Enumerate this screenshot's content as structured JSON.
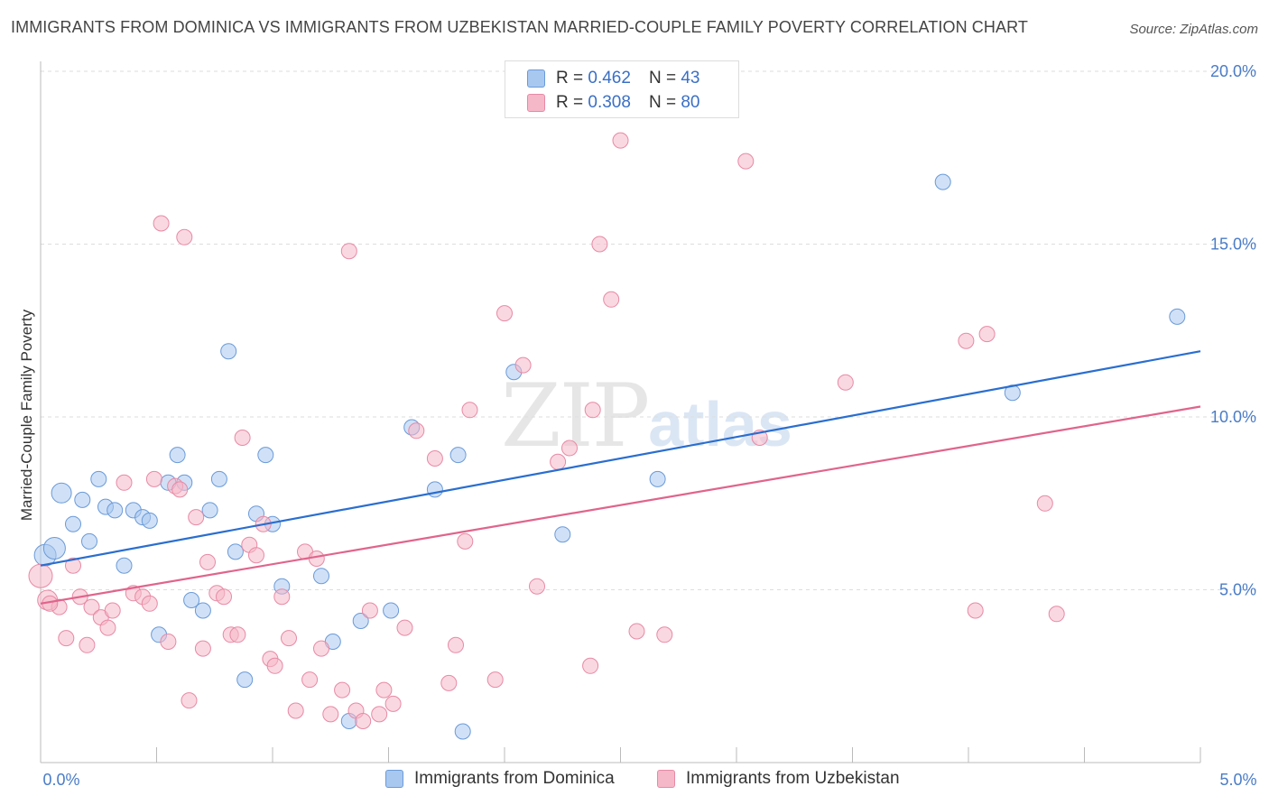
{
  "header": {
    "title": "IMMIGRANTS FROM DOMINICA VS IMMIGRANTS FROM UZBEKISTAN MARRIED-COUPLE FAMILY POVERTY CORRELATION CHART",
    "source": "Source: ZipAtlas.com"
  },
  "watermark": {
    "zip": "ZIP",
    "atlas": "atlas"
  },
  "legend": {
    "rows": [
      {
        "r_label": "R =",
        "r_value": "0.462",
        "n_label": "N =",
        "n_value": "43",
        "color": "#a9c8f0"
      },
      {
        "r_label": "R =",
        "r_value": "0.308",
        "n_label": "N =",
        "n_value": "80",
        "color": "#f5b8c9"
      }
    ]
  },
  "bottom_legend": {
    "dominica": "Immigrants from Dominica",
    "uzbekistan": "Immigrants from Uzbekistan"
  },
  "colors": {
    "dominica_fill": "#a9c8f0",
    "dominica_stroke": "#6a9ad8",
    "dominica_line": "#2a6ecf",
    "uzbekistan_fill": "#f5b8c9",
    "uzbekistan_stroke": "#e78aa5",
    "uzbekistan_line": "#e0648c",
    "grid": "#dddddd",
    "tick_label": "#4a7cc7"
  },
  "chart_data": {
    "type": "scatter",
    "title": "IMMIGRANTS FROM DOMINICA VS IMMIGRANTS FROM UZBEKISTAN MARRIED-COUPLE FAMILY POVERTY CORRELATION CHART",
    "xlabel": "",
    "ylabel": "Married-Couple Family Poverty",
    "xlim": [
      0,
      5
    ],
    "ylim": [
      0,
      20
    ],
    "x_tick_labels": [
      "0.0%",
      "5.0%"
    ],
    "y_ticks": [
      5,
      10,
      15,
      20
    ],
    "y_tick_labels": [
      "5.0%",
      "10.0%",
      "15.0%",
      "20.0%"
    ],
    "grid": true,
    "series": [
      {
        "name": "Immigrants from Dominica",
        "R": 0.462,
        "N": 43,
        "trend": {
          "x0": 0,
          "y0": 5.7,
          "x1": 5,
          "y1": 11.9
        },
        "points": [
          [
            0.02,
            6.0
          ],
          [
            0.06,
            6.2
          ],
          [
            0.09,
            7.8
          ],
          [
            0.14,
            6.9
          ],
          [
            0.18,
            7.6
          ],
          [
            0.21,
            6.4
          ],
          [
            0.25,
            8.2
          ],
          [
            0.28,
            7.4
          ],
          [
            0.32,
            7.3
          ],
          [
            0.36,
            5.7
          ],
          [
            0.4,
            7.3
          ],
          [
            0.44,
            7.1
          ],
          [
            0.47,
            7.0
          ],
          [
            0.51,
            3.7
          ],
          [
            0.55,
            8.1
          ],
          [
            0.59,
            8.9
          ],
          [
            0.62,
            8.1
          ],
          [
            0.65,
            4.7
          ],
          [
            0.7,
            4.4
          ],
          [
            0.73,
            7.3
          ],
          [
            0.77,
            8.2
          ],
          [
            0.81,
            11.9
          ],
          [
            0.84,
            6.1
          ],
          [
            0.88,
            2.4
          ],
          [
            0.93,
            7.2
          ],
          [
            0.97,
            8.9
          ],
          [
            1.0,
            6.9
          ],
          [
            1.04,
            5.1
          ],
          [
            1.21,
            5.4
          ],
          [
            1.26,
            3.5
          ],
          [
            1.33,
            1.2
          ],
          [
            1.38,
            4.1
          ],
          [
            1.51,
            4.4
          ],
          [
            1.6,
            9.7
          ],
          [
            1.7,
            7.9
          ],
          [
            1.8,
            8.9
          ],
          [
            1.82,
            0.9
          ],
          [
            2.04,
            11.3
          ],
          [
            2.25,
            6.6
          ],
          [
            2.66,
            8.2
          ],
          [
            3.89,
            16.8
          ],
          [
            4.19,
            10.7
          ],
          [
            4.9,
            12.9
          ]
        ]
      },
      {
        "name": "Immigrants from Uzbekistan",
        "R": 0.308,
        "N": 80,
        "trend": {
          "x0": 0,
          "y0": 4.6,
          "x1": 5,
          "y1": 10.3
        },
        "points": [
          [
            0.0,
            5.4
          ],
          [
            0.03,
            4.7
          ],
          [
            0.08,
            4.5
          ],
          [
            0.11,
            3.6
          ],
          [
            0.14,
            5.7
          ],
          [
            0.17,
            4.8
          ],
          [
            0.2,
            3.4
          ],
          [
            0.22,
            4.5
          ],
          [
            0.26,
            4.2
          ],
          [
            0.29,
            3.9
          ],
          [
            0.31,
            4.4
          ],
          [
            0.36,
            8.1
          ],
          [
            0.4,
            4.9
          ],
          [
            0.44,
            4.8
          ],
          [
            0.47,
            4.6
          ],
          [
            0.49,
            8.2
          ],
          [
            0.52,
            15.6
          ],
          [
            0.55,
            3.5
          ],
          [
            0.58,
            8.0
          ],
          [
            0.62,
            15.2
          ],
          [
            0.64,
            1.8
          ],
          [
            0.67,
            7.1
          ],
          [
            0.7,
            3.3
          ],
          [
            0.72,
            5.8
          ],
          [
            0.76,
            4.9
          ],
          [
            0.79,
            4.8
          ],
          [
            0.82,
            3.7
          ],
          [
            0.85,
            3.7
          ],
          [
            0.87,
            9.4
          ],
          [
            0.9,
            6.3
          ],
          [
            0.93,
            6.0
          ],
          [
            0.96,
            6.9
          ],
          [
            0.99,
            3.0
          ],
          [
            1.01,
            2.8
          ],
          [
            1.04,
            4.8
          ],
          [
            1.07,
            3.6
          ],
          [
            1.1,
            1.5
          ],
          [
            1.14,
            6.1
          ],
          [
            1.16,
            2.4
          ],
          [
            1.19,
            5.9
          ],
          [
            1.21,
            3.3
          ],
          [
            1.25,
            1.4
          ],
          [
            1.3,
            2.1
          ],
          [
            1.33,
            14.8
          ],
          [
            1.36,
            1.5
          ],
          [
            1.39,
            1.2
          ],
          [
            1.42,
            4.4
          ],
          [
            1.46,
            1.4
          ],
          [
            1.48,
            2.1
          ],
          [
            1.52,
            1.7
          ],
          [
            1.57,
            3.9
          ],
          [
            1.62,
            9.6
          ],
          [
            1.7,
            8.8
          ],
          [
            1.76,
            2.3
          ],
          [
            1.79,
            3.4
          ],
          [
            1.83,
            6.4
          ],
          [
            1.85,
            10.2
          ],
          [
            1.96,
            2.4
          ],
          [
            2.0,
            13.0
          ],
          [
            2.08,
            11.5
          ],
          [
            2.14,
            5.1
          ],
          [
            2.23,
            8.7
          ],
          [
            2.28,
            9.1
          ],
          [
            2.38,
            10.2
          ],
          [
            2.37,
            2.8
          ],
          [
            2.41,
            15.0
          ],
          [
            2.46,
            13.4
          ],
          [
            2.5,
            18.0
          ],
          [
            2.57,
            3.8
          ],
          [
            2.69,
            3.7
          ],
          [
            3.04,
            17.4
          ],
          [
            3.1,
            9.4
          ],
          [
            3.47,
            11.0
          ],
          [
            3.99,
            12.2
          ],
          [
            4.03,
            4.4
          ],
          [
            4.08,
            12.4
          ],
          [
            4.33,
            7.5
          ],
          [
            4.38,
            4.3
          ],
          [
            0.04,
            4.6
          ],
          [
            0.6,
            7.9
          ]
        ]
      }
    ]
  },
  "y_axis_label": "Married-Couple Family Poverty"
}
